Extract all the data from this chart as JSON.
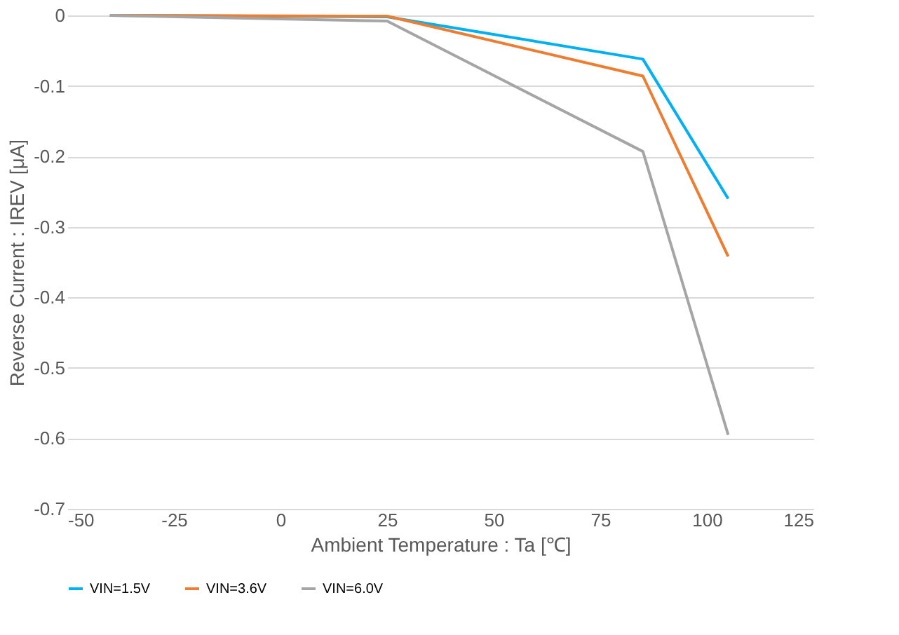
{
  "chart_data": {
    "type": "line",
    "xlabel": "Ambient Temperature : Ta [℃]",
    "ylabel": "Reverse Current : IREV [μA]",
    "x": [
      -40,
      25,
      85,
      105
    ],
    "series": [
      {
        "name": "VIN=1.5V",
        "color": "#00b0f0",
        "values": [
          0,
          -0.002,
          -0.062,
          -0.26
        ]
      },
      {
        "name": "VIN=3.6V",
        "color": "#ed7d31",
        "values": [
          0,
          -0.001,
          -0.086,
          -0.342
        ]
      },
      {
        "name": "VIN=6.0V",
        "color": "#a5a5a5",
        "values": [
          0,
          -0.008,
          -0.193,
          -0.595
        ]
      }
    ],
    "xlim": [
      -50,
      125
    ],
    "xticks": [
      -50,
      -25,
      0,
      25,
      50,
      75,
      100,
      125
    ],
    "ylim": [
      -0.7,
      0
    ],
    "yticks": [
      -0.7,
      -0.6,
      -0.5,
      -0.4,
      -0.3,
      -0.2,
      -0.1,
      0
    ],
    "grid": "y",
    "legend": "bottom",
    "marker": "none",
    "line_style": "solid"
  }
}
